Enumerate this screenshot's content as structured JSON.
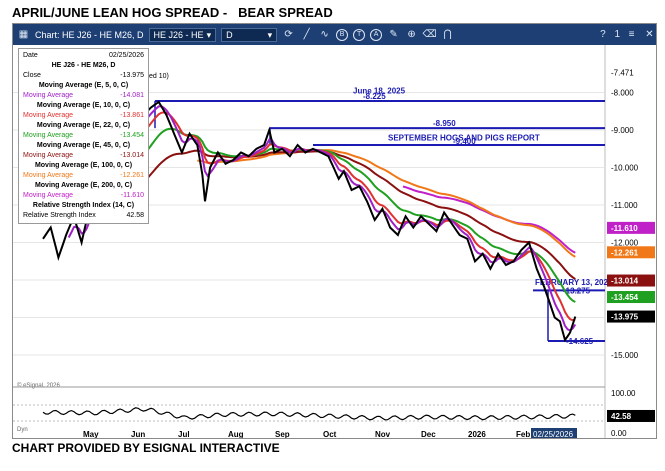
{
  "headline": "APRIL/JUNE LEAN HOG SPREAD -   BEAR SPREAD",
  "footline": "CHART PROVIDED BY ESIGNAL INTERACTIVE",
  "toolbar": {
    "chart_title": "Chart: HE J26 - HE M26, D",
    "symbol": "HE J26 - HE",
    "interval": "D",
    "help": "?",
    "number_field": "1"
  },
  "info_panel": {
    "date_label": "Date",
    "date_value": "02/25/2026",
    "symbol_title": "HE J26 - HE M26, D",
    "close_label": "Close",
    "close_value": "-13.975",
    "studies": [
      {
        "title": "Moving Average (E, 5, 0, C)",
        "label": "Moving Average",
        "value": "-14.081",
        "color": "#a020c8"
      },
      {
        "title": "Moving Average (E, 10, 0, C)",
        "label": "Moving Average",
        "value": "-13.861",
        "color": "#e03030"
      },
      {
        "title": "Moving Average (E, 22, 0, C)",
        "label": "Moving Average",
        "value": "-13.454",
        "color": "#20a020"
      },
      {
        "title": "Moving Average (E, 45, 0, C)",
        "label": "Moving Average",
        "value": "-13.014",
        "color": "#8b1010"
      },
      {
        "title": "Moving Average (E, 100, 0, C)",
        "label": "Moving Average",
        "value": "-12.261",
        "color": "#f07818"
      },
      {
        "title": "Moving Average (E, 200, 0, C)",
        "label": "Moving Average",
        "value": "-11.610",
        "color": "#c020c8"
      }
    ],
    "rsi_title": "Relative Strength Index (14, C)",
    "rsi_label": "Relative Strength Index",
    "rsi_value": "42.58"
  },
  "hidden_text_fragment": "ed 10)",
  "watermark": "© eSignal, 2026",
  "dyn_label": "Dyn",
  "date_tag": "02/25/2026",
  "chart_data": {
    "type": "line",
    "y_range": [
      -15.0,
      -7.0
    ],
    "x_labels": [
      "May",
      "Jun",
      "Jul",
      "Aug",
      "Sep",
      "Oct",
      "Nov",
      "Dec",
      "2026",
      "Feb"
    ],
    "y_ticks": [
      "-7.471",
      "-8.000",
      "-9.000",
      "-10.000",
      "-11.000",
      "-12.000",
      "-13.000",
      "-14.000",
      "-15.000"
    ],
    "annotations": [
      {
        "text": "June 18, 2025",
        "y": -7.95
      },
      {
        "text": "-8.225",
        "y": -8.225
      },
      {
        "text": "-8.950",
        "y": -8.95
      },
      {
        "text": "SEPTEMBER HOGS AND PIGS REPORT",
        "y": -9.2
      },
      {
        "text": "-9.400",
        "y": -9.4
      },
      {
        "text": "FEBRUARY 13, 2026",
        "y": -13.05
      },
      {
        "text": "-13.275",
        "y": -13.275
      },
      {
        "text": "-14.625",
        "y": -14.625
      }
    ],
    "price_badges": [
      {
        "value": "-11.610",
        "y": -11.61,
        "color": "#c020c8"
      },
      {
        "value": "-12.261",
        "y": -12.261,
        "color": "#f07818"
      },
      {
        "value": "-13.014",
        "y": -13.014,
        "color": "#8b1010"
      },
      {
        "value": "-13.454",
        "y": -13.454,
        "color": "#20a020"
      },
      {
        "value": "-13.975",
        "y": -13.975,
        "color": "#000000"
      }
    ],
    "price": [
      [
        0,
        -11.9
      ],
      [
        3,
        -11.6
      ],
      [
        6,
        -12.4
      ],
      [
        9,
        -11.8
      ],
      [
        12,
        -11.3
      ],
      [
        15,
        -12.0
      ],
      [
        18,
        -11.1
      ],
      [
        21,
        -10.6
      ],
      [
        24,
        -10.2
      ],
      [
        27,
        -9.9
      ],
      [
        30,
        -9.5
      ],
      [
        33,
        -9.3
      ],
      [
        36,
        -9.0
      ],
      [
        39,
        -8.6
      ],
      [
        42,
        -8.4
      ],
      [
        45,
        -8.25
      ],
      [
        48,
        -8.6
      ],
      [
        51,
        -9.1
      ],
      [
        54,
        -9.6
      ],
      [
        57,
        -9.1
      ],
      [
        60,
        -9.4
      ],
      [
        62,
        -10.2
      ],
      [
        63,
        -10.9
      ],
      [
        65,
        -10.0
      ],
      [
        68,
        -9.6
      ],
      [
        71,
        -9.9
      ],
      [
        74,
        -9.8
      ],
      [
        77,
        -9.6
      ],
      [
        80,
        -9.7
      ],
      [
        83,
        -9.5
      ],
      [
        86,
        -9.4
      ],
      [
        88,
        -9.0
      ],
      [
        90,
        -9.6
      ],
      [
        93,
        -9.5
      ],
      [
        96,
        -9.7
      ],
      [
        99,
        -9.4
      ],
      [
        102,
        -9.6
      ],
      [
        105,
        -9.5
      ],
      [
        108,
        -9.6
      ],
      [
        111,
        -9.7
      ],
      [
        113,
        -10.0
      ],
      [
        115,
        -10.3
      ],
      [
        117,
        -10.1
      ],
      [
        120,
        -10.6
      ],
      [
        123,
        -10.5
      ],
      [
        126,
        -10.9
      ],
      [
        129,
        -11.4
      ],
      [
        132,
        -11.1
      ],
      [
        135,
        -11.6
      ],
      [
        138,
        -11.8
      ],
      [
        141,
        -11.3
      ],
      [
        144,
        -11.6
      ],
      [
        147,
        -11.3
      ],
      [
        150,
        -11.5
      ],
      [
        153,
        -11.7
      ],
      [
        156,
        -11.2
      ],
      [
        159,
        -11.5
      ],
      [
        162,
        -11.8
      ],
      [
        165,
        -11.9
      ],
      [
        168,
        -12.5
      ],
      [
        171,
        -12.3
      ],
      [
        174,
        -12.7
      ],
      [
        177,
        -12.3
      ],
      [
        180,
        -12.6
      ],
      [
        183,
        -12.5
      ],
      [
        186,
        -12.2
      ],
      [
        189,
        -12.0
      ],
      [
        192,
        -12.7
      ],
      [
        195,
        -13.2
      ],
      [
        197,
        -13.6
      ],
      [
        199,
        -14.0
      ],
      [
        201,
        -14.1
      ],
      [
        203,
        -14.6
      ],
      [
        205,
        -14.4
      ],
      [
        207,
        -13.975
      ]
    ],
    "rsi": [
      [
        0,
        52
      ],
      [
        20,
        50
      ],
      [
        40,
        60
      ],
      [
        55,
        38
      ],
      [
        70,
        46
      ],
      [
        90,
        48
      ],
      [
        110,
        43
      ],
      [
        130,
        37
      ],
      [
        150,
        40
      ],
      [
        170,
        38
      ],
      [
        190,
        40
      ],
      [
        207,
        42.58
      ]
    ],
    "rsi_ticks": [
      "100.00",
      "50.00",
      "0.00"
    ]
  }
}
